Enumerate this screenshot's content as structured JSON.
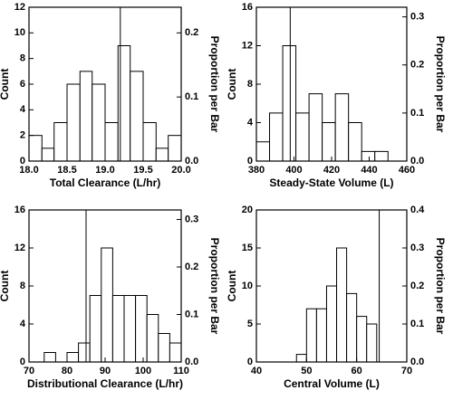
{
  "chart_data": [
    {
      "type": "histogram",
      "xlabel": "Total Clearance (L/hr)",
      "ylabel": "Count",
      "y2label": "Proportion per Bar",
      "bins": [
        18.0,
        18.17,
        18.33,
        18.5,
        18.67,
        18.83,
        19.0,
        19.17,
        19.33,
        19.5,
        19.67,
        19.83,
        20.0
      ],
      "values": [
        2,
        1,
        3,
        6,
        7,
        6,
        3,
        9,
        7,
        3,
        1,
        2
      ],
      "reference_line": 19.2,
      "xlim": [
        18.0,
        20.0
      ],
      "xticks": [
        {
          "value": 18.0,
          "label": "18.0"
        },
        {
          "value": 18.5,
          "label": "18.5"
        },
        {
          "value": 19.0,
          "label": "19.0"
        },
        {
          "value": 19.5,
          "label": "19.5"
        },
        {
          "value": 20.0,
          "label": "20.0"
        }
      ],
      "ylim": [
        0,
        12
      ],
      "yticks": [
        0,
        2,
        4,
        6,
        8,
        10,
        12
      ],
      "y2lim": [
        0,
        0.24
      ],
      "y2ticks": [
        {
          "value": 0,
          "label": "0.0"
        },
        0.1,
        0.2
      ]
    },
    {
      "type": "histogram",
      "xlabel": "Steady-State Volume (L)",
      "ylabel": "Count",
      "y2label": "Proportion per Bar",
      "bins": [
        380,
        387,
        394,
        401,
        408,
        415,
        422,
        429,
        436,
        443,
        450
      ],
      "values": [
        2,
        5,
        12,
        5,
        7,
        4,
        7,
        4,
        1,
        1
      ],
      "reference_line": 398,
      "xlim": [
        380,
        460
      ],
      "xticks": [
        380,
        400,
        420,
        440,
        460
      ],
      "ylim": [
        0,
        16
      ],
      "yticks": [
        0,
        4,
        8,
        12,
        16
      ],
      "y2lim": [
        0,
        0.32
      ],
      "y2ticks": [
        {
          "value": 0,
          "label": "0.0"
        },
        0.1,
        0.2,
        0.3
      ]
    },
    {
      "type": "histogram",
      "xlabel": "Distributional Clearance (L/hr)",
      "ylabel": "Count",
      "y2label": "Proportion per Bar",
      "bins": [
        74,
        77,
        80,
        83,
        86,
        89,
        92,
        95,
        98,
        101,
        104,
        107,
        110
      ],
      "values": [
        1,
        0,
        1,
        2,
        7,
        12,
        7,
        7,
        7,
        5,
        3,
        2
      ],
      "reference_line": 85,
      "xlim": [
        70,
        110
      ],
      "xticks": [
        70,
        80,
        90,
        100,
        110
      ],
      "ylim": [
        0,
        16
      ],
      "yticks": [
        0,
        4,
        8,
        12,
        16
      ],
      "y2lim": [
        0,
        0.32
      ],
      "y2ticks": [
        {
          "value": 0,
          "label": "0.0"
        },
        0.1,
        0.2,
        0.3
      ]
    },
    {
      "type": "histogram",
      "xlabel": "Central Volume (L)",
      "ylabel": "Count",
      "y2label": "Proportion per Bar",
      "bins": [
        48,
        50,
        52,
        54,
        56,
        58,
        60,
        62,
        64
      ],
      "values": [
        1,
        7,
        7,
        10,
        15,
        9,
        6,
        5
      ],
      "reference_line": 64.5,
      "xlim": [
        40,
        70
      ],
      "xticks": [
        40,
        50,
        60,
        70
      ],
      "ylim": [
        0,
        20
      ],
      "yticks": [
        0,
        5,
        10,
        15,
        20
      ],
      "y2lim": [
        0,
        0.4
      ],
      "y2ticks": [
        {
          "value": 0,
          "label": "0.0"
        },
        0.1,
        0.2,
        0.3,
        0.4
      ]
    }
  ]
}
